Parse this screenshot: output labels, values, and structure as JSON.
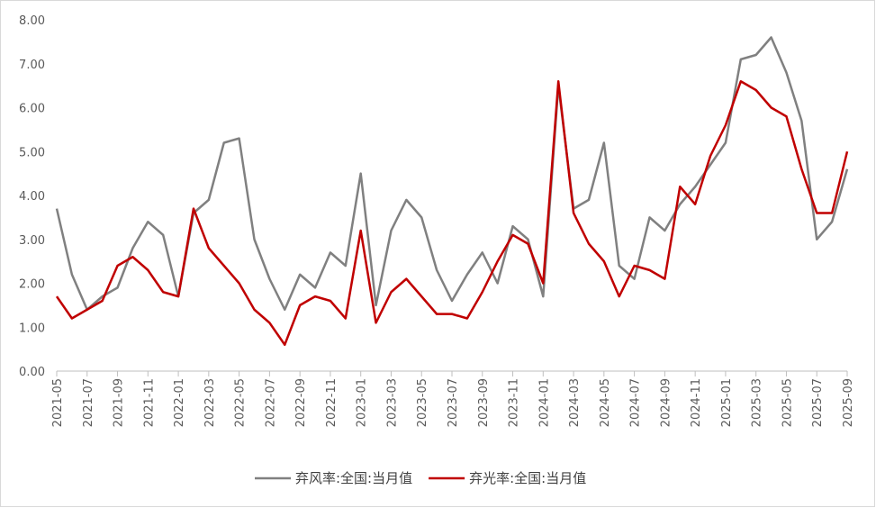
{
  "chart_data": {
    "type": "line",
    "categories": [
      "2021-05",
      null,
      "2021-07",
      null,
      "2021-09",
      null,
      "2021-11",
      null,
      "2022-01",
      null,
      "2022-03",
      null,
      "2022-05",
      null,
      "2022-07",
      null,
      "2022-09",
      null,
      "2022-11",
      null,
      "2023-01",
      null,
      "2023-03",
      null,
      "2023-05",
      null,
      "2023-07",
      null,
      "2023-09",
      null,
      "2023-11",
      null,
      "2024-01",
      null,
      "2024-03",
      null,
      "2024-05",
      null,
      "2024-07",
      null,
      "2024-09",
      null,
      "2024-11",
      null,
      "2025-01",
      null,
      "2025-03",
      null,
      "2025-05",
      null,
      "2025-07",
      null,
      "2025-09"
    ],
    "series": [
      {
        "name": "弃风率:全国:当月值",
        "color": "#808080",
        "values": [
          3.7,
          2.2,
          1.4,
          1.7,
          1.9,
          2.8,
          3.4,
          3.1,
          1.7,
          3.6,
          3.9,
          5.2,
          5.3,
          3.0,
          2.1,
          1.4,
          2.2,
          1.9,
          2.7,
          2.4,
          4.5,
          1.5,
          3.2,
          3.9,
          3.5,
          2.3,
          1.6,
          2.2,
          2.7,
          2.0,
          3.3,
          3.0,
          1.7,
          6.5,
          3.7,
          3.9,
          5.2,
          2.4,
          2.1,
          3.5,
          3.2,
          3.8,
          4.2,
          4.7,
          5.2,
          7.1,
          7.2,
          7.6,
          6.8,
          5.7,
          3.0,
          3.4,
          4.6
        ]
      },
      {
        "name": "弃光率:全国:当月值",
        "color": "#c00000",
        "values": [
          1.7,
          1.2,
          1.4,
          1.6,
          2.4,
          2.6,
          2.3,
          1.8,
          1.7,
          3.7,
          2.8,
          2.4,
          2.0,
          1.4,
          1.1,
          0.6,
          1.5,
          1.7,
          1.6,
          1.2,
          3.2,
          1.1,
          1.8,
          2.1,
          1.7,
          1.3,
          1.3,
          1.2,
          1.8,
          2.5,
          3.1,
          2.9,
          2.0,
          6.6,
          3.6,
          2.9,
          2.5,
          1.7,
          2.4,
          2.3,
          2.1,
          4.2,
          3.8,
          4.9,
          5.6,
          6.6,
          6.4,
          6.0,
          5.8,
          4.6,
          3.6,
          3.6,
          5.0
        ]
      }
    ],
    "ylim": [
      0,
      8
    ],
    "yticks": [
      {
        "value": 0,
        "label": "0.00"
      },
      {
        "value": 1,
        "label": "1.00"
      },
      {
        "value": 2,
        "label": "2.00"
      },
      {
        "value": 3,
        "label": "3.00"
      },
      {
        "value": 4,
        "label": "4.00"
      },
      {
        "value": 5,
        "label": "5.00"
      },
      {
        "value": 6,
        "label": "6.00"
      },
      {
        "value": 7,
        "label": "7.00"
      },
      {
        "value": 8,
        "label": "8.00"
      }
    ],
    "grid": false,
    "legend": "bottom"
  }
}
